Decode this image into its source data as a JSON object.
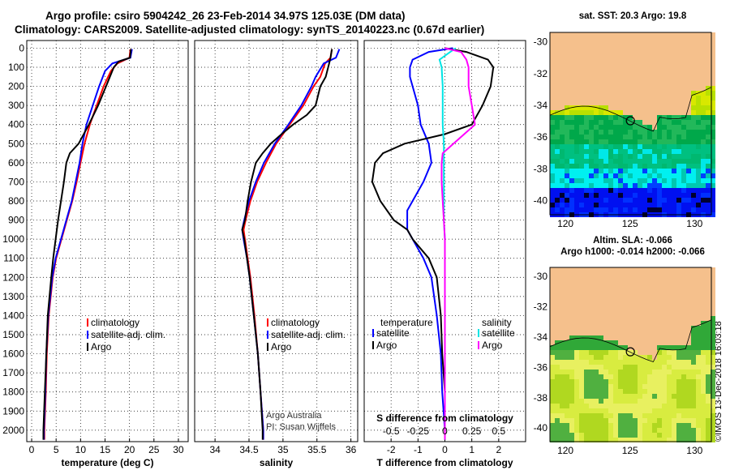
{
  "header": {
    "line1": "Argo profile: csiro 5904242_26 23-Feb-2014 34.97S 125.03E (DM data)",
    "line2": "Climatology: CARS2009. Satellite-adjusted climatology: synTS_20140223.nc (0.67d earlier)"
  },
  "colors": {
    "climatology": "#ff0000",
    "satellite": "#0000ff",
    "argo": "#000000",
    "sat_salinity": "#00e5e5",
    "argo_salinity": "#ff00ff",
    "land": "#f5c08c"
  },
  "chart_data": [
    {
      "type": "line",
      "panel": "temperature",
      "xlabel": "temperature (deg C)",
      "ylabel": "",
      "xlim": [
        -1,
        32
      ],
      "ylim": [
        2060,
        0
      ],
      "xticks": [
        "0",
        "5",
        "10",
        "15",
        "20",
        "25",
        "30"
      ],
      "xtick_values": [
        0,
        5,
        10,
        15,
        20,
        25,
        30
      ],
      "yticks": [
        "0",
        "100",
        "200",
        "300",
        "400",
        "500",
        "600",
        "700",
        "800",
        "900",
        "1000",
        "1100",
        "1200",
        "1300",
        "1400",
        "1500",
        "1600",
        "1700",
        "1800",
        "1900",
        "2000"
      ],
      "ytick_values": [
        0,
        100,
        200,
        300,
        400,
        500,
        600,
        700,
        800,
        900,
        1000,
        1100,
        1200,
        1300,
        1400,
        1500,
        1600,
        1700,
        1800,
        1900,
        2000
      ],
      "legend": [
        "climatology",
        "satellite-adj. clim.",
        "Argo"
      ],
      "series": [
        {
          "name": "climatology",
          "color": "#ff0000",
          "depth": [
            5,
            50,
            80,
            120,
            200,
            300,
            400,
            500,
            600,
            700,
            800,
            900,
            1000,
            1100,
            1200,
            1400,
            1600,
            1800,
            2000,
            2050
          ],
          "values": [
            20.2,
            20.0,
            17.5,
            16.2,
            14.7,
            13.3,
            11.9,
            10.8,
            10.0,
            9.2,
            8.3,
            7.2,
            6.1,
            5.0,
            4.3,
            3.5,
            3.1,
            2.9,
            2.6,
            2.6
          ]
        },
        {
          "name": "satellite-adj. clim.",
          "color": "#0000ff",
          "depth": [
            5,
            50,
            80,
            120,
            200,
            300,
            400,
            500,
            600,
            700,
            800,
            900,
            1000,
            1100,
            1200,
            1400,
            1600,
            1800,
            2000,
            2050
          ],
          "values": [
            20.5,
            20.2,
            16.5,
            15.0,
            13.8,
            12.5,
            11.2,
            10.4,
            9.8,
            9.0,
            8.2,
            7.1,
            6.0,
            4.9,
            4.2,
            3.4,
            3.0,
            2.8,
            2.5,
            2.5
          ]
        },
        {
          "name": "Argo",
          "color": "#000000",
          "depth": [
            5,
            50,
            70,
            100,
            200,
            300,
            400,
            500,
            550,
            600,
            700,
            800,
            900,
            1000,
            1100,
            1200,
            1400,
            1600,
            1800,
            2000,
            2050
          ],
          "values": [
            20.3,
            20.1,
            17.8,
            16.8,
            15.2,
            13.6,
            11.7,
            9.6,
            7.8,
            7.1,
            6.6,
            6.0,
            5.4,
            4.9,
            4.4,
            4.0,
            3.3,
            3.0,
            2.7,
            2.4,
            2.4
          ]
        }
      ]
    },
    {
      "type": "line",
      "panel": "salinity",
      "xlabel": "salinity",
      "xlim": [
        33.7,
        36.1
      ],
      "ylim": [
        2060,
        0
      ],
      "xticks": [
        "34",
        "34.5",
        "35",
        "35.5",
        "36"
      ],
      "xtick_values": [
        34,
        34.5,
        35,
        35.5,
        36
      ],
      "legend": [
        "climatology",
        "satellite-adj. clim.",
        "Argo"
      ],
      "series": [
        {
          "name": "climatology",
          "color": "#ff0000",
          "depth": [
            5,
            50,
            80,
            150,
            200,
            300,
            400,
            500,
            600,
            700,
            800,
            900,
            950,
            1000,
            1100,
            1200,
            1400,
            1600,
            1800,
            2000,
            2050
          ],
          "values": [
            35.72,
            35.7,
            35.62,
            35.55,
            35.45,
            35.3,
            35.1,
            34.9,
            34.75,
            34.62,
            34.52,
            34.45,
            34.42,
            34.44,
            34.48,
            34.52,
            34.58,
            34.63,
            34.67,
            34.71,
            34.71
          ]
        },
        {
          "name": "satellite-adj. clim.",
          "color": "#0000ff",
          "depth": [
            5,
            50,
            80,
            150,
            200,
            300,
            400,
            500,
            600,
            700,
            800,
            900,
            950,
            1000,
            1100,
            1200,
            1400,
            1600,
            1800,
            2000,
            2050
          ],
          "values": [
            35.83,
            35.78,
            35.6,
            35.48,
            35.42,
            35.27,
            35.08,
            34.88,
            34.72,
            34.6,
            34.5,
            34.43,
            34.4,
            34.42,
            34.47,
            34.51,
            34.57,
            34.63,
            34.67,
            34.71,
            34.71
          ]
        },
        {
          "name": "Argo",
          "color": "#000000",
          "depth": [
            5,
            50,
            80,
            150,
            200,
            300,
            350,
            400,
            450,
            500,
            550,
            600,
            700,
            800,
            900,
            950,
            1000,
            1100,
            1200,
            1400,
            1600,
            1800,
            2000,
            2050
          ],
          "values": [
            35.72,
            35.7,
            35.68,
            35.63,
            35.55,
            35.48,
            35.35,
            35.15,
            34.98,
            34.82,
            34.7,
            34.6,
            34.53,
            34.48,
            34.44,
            34.4,
            34.43,
            34.47,
            34.51,
            34.57,
            34.63,
            34.67,
            34.7,
            34.7
          ]
        }
      ],
      "annotation": [
        "Argo Australia",
        "PI: Susan Wijffels"
      ]
    },
    {
      "type": "line",
      "panel": "differences",
      "xlabel": "T difference from climatology",
      "top_axis_label": "S difference from climatology",
      "xlim": [
        -3,
        3
      ],
      "ylim": [
        2060,
        0
      ],
      "xticks": [
        "-2",
        "-1",
        "0",
        "1",
        "2"
      ],
      "xtick_values": [
        -2,
        -1,
        0,
        1,
        2
      ],
      "top_xticks": [
        "-0.5",
        "-0.25",
        "0",
        "0.25",
        "0.5"
      ],
      "top_xtick_values": [
        -0.5,
        -0.25,
        0,
        0.25,
        0.5
      ],
      "legend_left_title": "temperature",
      "legend_right_title": "salinity",
      "legend": [
        "satellite",
        "Argo",
        "satellite",
        "Argo"
      ],
      "series": [
        {
          "name": "T satellite",
          "color": "#0000ff",
          "depth": [
            0,
            20,
            60,
            100,
            150,
            200,
            300,
            400,
            500,
            600,
            700,
            800,
            850,
            900,
            950,
            1000,
            1100,
            1200,
            1400,
            1600,
            1800,
            2000,
            2050
          ],
          "values": [
            0.3,
            -0.6,
            -1.2,
            -1.3,
            -1.3,
            -1.2,
            -1.0,
            -0.9,
            -0.6,
            -0.5,
            -0.8,
            -1.2,
            -1.4,
            -1.4,
            -1.4,
            -1.2,
            -0.8,
            -0.5,
            -0.3,
            -0.15,
            -0.1,
            0,
            0
          ]
        },
        {
          "name": "T Argo",
          "color": "#000000",
          "depth": [
            0,
            20,
            60,
            100,
            200,
            300,
            400,
            450,
            500,
            550,
            600,
            700,
            800,
            900,
            950,
            1000,
            1100,
            1200,
            1400,
            1600,
            1800,
            2000,
            2050
          ],
          "values": [
            0,
            0.8,
            1.6,
            1.8,
            1.7,
            1.4,
            1.0,
            0,
            -1.5,
            -2.3,
            -2.6,
            -2.7,
            -2.4,
            -1.9,
            -1.4,
            -1.2,
            -0.6,
            -0.3,
            -0.15,
            -0.1,
            0,
            0,
            0
          ]
        },
        {
          "name": "S satellite",
          "color": "#00e5e5",
          "depth": [
            0,
            20,
            60,
            100,
            200,
            300,
            400,
            500,
            600,
            700,
            800,
            900,
            1000,
            1200,
            1400,
            1600,
            1800,
            2000,
            2050
          ],
          "values": [
            0.1,
            0.05,
            -0.05,
            -0.03,
            -0.02,
            -0.02,
            -0.02,
            -0.01,
            -0.01,
            -0.01,
            -0.01,
            -0.01,
            0.0,
            0.0,
            0.0,
            0.0,
            0.0,
            0.0,
            0.0
          ]
        },
        {
          "name": "S Argo",
          "color": "#ff00ff",
          "depth": [
            0,
            20,
            60,
            100,
            200,
            300,
            400,
            500,
            550,
            600,
            700,
            800,
            900,
            1000,
            1200,
            1400,
            1600,
            1800,
            2000,
            2050
          ],
          "values": [
            0.0,
            0.15,
            0.2,
            0.22,
            0.22,
            0.25,
            0.28,
            0.08,
            -0.02,
            -0.03,
            -0.03,
            -0.02,
            -0.01,
            0.0,
            0.0,
            0.0,
            0.0,
            0.0,
            0.0,
            0.0
          ]
        }
      ]
    },
    {
      "type": "heatmap",
      "panel": "sat_sst_map",
      "title": "sat. SST: 20.3 Argo: 19.8",
      "xticks": [
        "120",
        "125",
        "130"
      ],
      "xtick_values": [
        120,
        125,
        130
      ],
      "yticks": [
        "-30",
        "-32",
        "-34",
        "-36",
        "-38",
        "-40"
      ],
      "ytick_values": [
        -30,
        -32,
        -34,
        -36,
        -38,
        -40
      ],
      "xlim": [
        118.8,
        131.3
      ],
      "ylim": [
        -40.9,
        -29.4
      ],
      "float_lon": 125.03,
      "float_lat": -34.97
    },
    {
      "type": "heatmap",
      "panel": "altimetry_map",
      "title_line1": "Altim. SLA: -0.066",
      "title_line2": "Argo h1000: -0.014 h2000: -0.066",
      "xticks": [
        "120",
        "125",
        "130"
      ],
      "xtick_values": [
        120,
        125,
        130
      ],
      "yticks": [
        "-30",
        "-32",
        "-34",
        "-36",
        "-38",
        "-40"
      ],
      "ytick_values": [
        -30,
        -32,
        -34,
        -36,
        -38,
        -40
      ],
      "xlim": [
        118.8,
        131.3
      ],
      "ylim": [
        -40.9,
        -29.4
      ],
      "float_lon": 125.03,
      "float_lat": -34.97
    }
  ],
  "watermark": "©IMOS 13-Dec-2018 16:03:18"
}
